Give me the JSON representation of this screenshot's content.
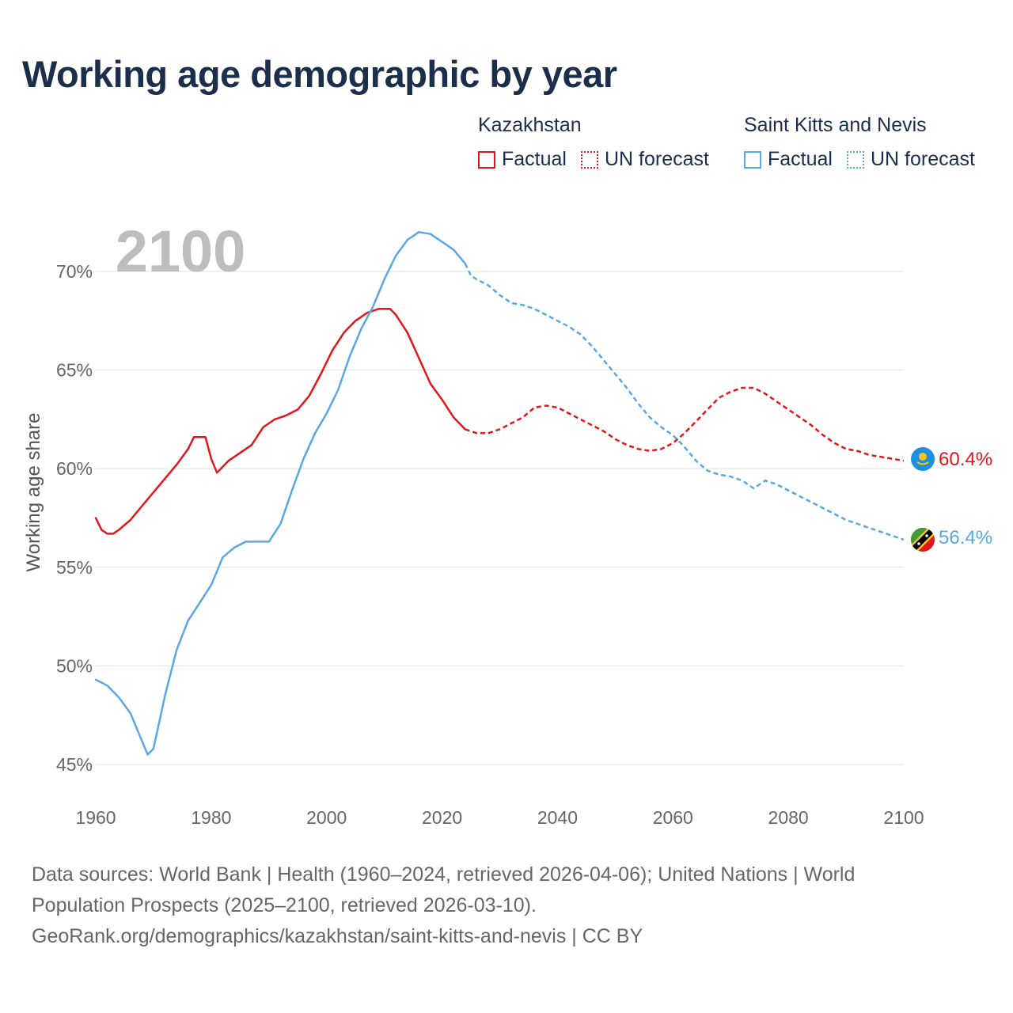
{
  "title": "Working age demographic by year",
  "legend": {
    "groups": [
      {
        "country": "Kazakhstan",
        "color": "#e3161c",
        "factual": "Factual",
        "forecast": "UN forecast"
      },
      {
        "country": "Saint Kitts and Nevis",
        "color": "#5ba7e3",
        "factual": "Factual",
        "forecast": "UN forecast"
      }
    ]
  },
  "footer": {
    "line1": "Data sources: World Bank | Health (1960–2024, retrieved 2026-04-06); United Nations | World",
    "line2": "Population Prospects (2025–2100, retrieved 2026-03-10).",
    "line3": "GeoRank.org/demographics/kazakhstan/saint-kitts-and-nevis | CC BY"
  },
  "chart_data": {
    "type": "line",
    "title": "Working age demographic by year",
    "year_watermark": "2100",
    "xlabel": "",
    "ylabel": "Working age share",
    "xlim": [
      1960,
      2100
    ],
    "ylim": [
      45,
      72
    ],
    "x_ticks": [
      1960,
      1980,
      2000,
      2020,
      2040,
      2060,
      2080,
      2100
    ],
    "x_tick_labels": [
      "1960",
      "1980",
      "2000",
      "2020",
      "2040",
      "2060",
      "2080",
      "2100"
    ],
    "y_ticks": [
      45,
      50,
      55,
      60,
      65,
      70
    ],
    "y_tick_labels": [
      "45%",
      "50%",
      "55%",
      "60%",
      "65%",
      "70%"
    ],
    "forecast_start": 2024,
    "series": [
      {
        "name": "Kazakhstan",
        "color": "#e3161c",
        "end_label": "60.4%",
        "flag": "Kazakhstan",
        "points": [
          [
            1960,
            57.5
          ],
          [
            1961,
            56.9
          ],
          [
            1962,
            56.7
          ],
          [
            1963,
            56.7
          ],
          [
            1964,
            56.9
          ],
          [
            1966,
            57.4
          ],
          [
            1968,
            58.1
          ],
          [
            1970,
            58.8
          ],
          [
            1972,
            59.5
          ],
          [
            1974,
            60.2
          ],
          [
            1976,
            61.0
          ],
          [
            1977,
            61.6
          ],
          [
            1979,
            61.6
          ],
          [
            1980,
            60.5
          ],
          [
            1981,
            59.8
          ],
          [
            1983,
            60.4
          ],
          [
            1985,
            60.8
          ],
          [
            1987,
            61.2
          ],
          [
            1989,
            62.1
          ],
          [
            1991,
            62.5
          ],
          [
            1993,
            62.7
          ],
          [
            1995,
            63.0
          ],
          [
            1997,
            63.7
          ],
          [
            1999,
            64.8
          ],
          [
            2001,
            66.0
          ],
          [
            2003,
            66.9
          ],
          [
            2005,
            67.5
          ],
          [
            2007,
            67.9
          ],
          [
            2009,
            68.1
          ],
          [
            2011,
            68.1
          ],
          [
            2012,
            67.8
          ],
          [
            2014,
            66.9
          ],
          [
            2016,
            65.6
          ],
          [
            2018,
            64.3
          ],
          [
            2020,
            63.5
          ],
          [
            2022,
            62.6
          ],
          [
            2024,
            62.0
          ],
          [
            2026,
            61.8
          ],
          [
            2028,
            61.8
          ],
          [
            2030,
            62.0
          ],
          [
            2032,
            62.3
          ],
          [
            2034,
            62.6
          ],
          [
            2036,
            63.1
          ],
          [
            2038,
            63.2
          ],
          [
            2040,
            63.1
          ],
          [
            2042,
            62.8
          ],
          [
            2044,
            62.5
          ],
          [
            2046,
            62.2
          ],
          [
            2048,
            61.9
          ],
          [
            2050,
            61.5
          ],
          [
            2052,
            61.2
          ],
          [
            2054,
            61.0
          ],
          [
            2056,
            60.9
          ],
          [
            2058,
            61.0
          ],
          [
            2060,
            61.3
          ],
          [
            2062,
            61.8
          ],
          [
            2064,
            62.4
          ],
          [
            2066,
            63.0
          ],
          [
            2068,
            63.6
          ],
          [
            2070,
            63.9
          ],
          [
            2072,
            64.1
          ],
          [
            2074,
            64.1
          ],
          [
            2076,
            63.8
          ],
          [
            2078,
            63.4
          ],
          [
            2080,
            63.0
          ],
          [
            2082,
            62.6
          ],
          [
            2084,
            62.2
          ],
          [
            2086,
            61.7
          ],
          [
            2088,
            61.3
          ],
          [
            2090,
            61.0
          ],
          [
            2092,
            60.9
          ],
          [
            2094,
            60.7
          ],
          [
            2096,
            60.6
          ],
          [
            2098,
            60.5
          ],
          [
            2100,
            60.4
          ]
        ]
      },
      {
        "name": "Saint Kitts and Nevis",
        "color": "#5ba7e3",
        "end_label": "56.4%",
        "flag": "Saint Kitts and Nevis",
        "points": [
          [
            1960,
            49.3
          ],
          [
            1962,
            49.0
          ],
          [
            1964,
            48.4
          ],
          [
            1966,
            47.6
          ],
          [
            1968,
            46.2
          ],
          [
            1969,
            45.5
          ],
          [
            1970,
            45.8
          ],
          [
            1972,
            48.5
          ],
          [
            1974,
            50.8
          ],
          [
            1976,
            52.3
          ],
          [
            1978,
            53.2
          ],
          [
            1980,
            54.1
          ],
          [
            1982,
            55.5
          ],
          [
            1984,
            56.0
          ],
          [
            1986,
            56.3
          ],
          [
            1988,
            56.3
          ],
          [
            1990,
            56.3
          ],
          [
            1992,
            57.2
          ],
          [
            1994,
            58.9
          ],
          [
            1996,
            60.5
          ],
          [
            1998,
            61.8
          ],
          [
            2000,
            62.8
          ],
          [
            2002,
            64.0
          ],
          [
            2004,
            65.7
          ],
          [
            2006,
            67.1
          ],
          [
            2008,
            68.2
          ],
          [
            2010,
            69.6
          ],
          [
            2012,
            70.8
          ],
          [
            2014,
            71.6
          ],
          [
            2016,
            72.0
          ],
          [
            2018,
            71.9
          ],
          [
            2020,
            71.5
          ],
          [
            2022,
            71.1
          ],
          [
            2024,
            70.4
          ],
          [
            2025,
            69.8
          ],
          [
            2026,
            69.6
          ],
          [
            2028,
            69.3
          ],
          [
            2030,
            68.8
          ],
          [
            2032,
            68.4
          ],
          [
            2034,
            68.3
          ],
          [
            2036,
            68.1
          ],
          [
            2038,
            67.8
          ],
          [
            2040,
            67.5
          ],
          [
            2042,
            67.2
          ],
          [
            2044,
            66.8
          ],
          [
            2046,
            66.2
          ],
          [
            2048,
            65.5
          ],
          [
            2050,
            64.8
          ],
          [
            2052,
            64.1
          ],
          [
            2054,
            63.3
          ],
          [
            2056,
            62.6
          ],
          [
            2058,
            62.1
          ],
          [
            2060,
            61.7
          ],
          [
            2062,
            61.1
          ],
          [
            2064,
            60.4
          ],
          [
            2066,
            59.9
          ],
          [
            2068,
            59.7
          ],
          [
            2070,
            59.6
          ],
          [
            2072,
            59.4
          ],
          [
            2074,
            59.0
          ],
          [
            2076,
            59.4
          ],
          [
            2078,
            59.2
          ],
          [
            2080,
            58.9
          ],
          [
            2082,
            58.6
          ],
          [
            2084,
            58.3
          ],
          [
            2086,
            58.0
          ],
          [
            2088,
            57.7
          ],
          [
            2090,
            57.4
          ],
          [
            2092,
            57.2
          ],
          [
            2094,
            57.0
          ],
          [
            2096,
            56.8
          ],
          [
            2098,
            56.6
          ],
          [
            2100,
            56.4
          ]
        ]
      }
    ]
  }
}
